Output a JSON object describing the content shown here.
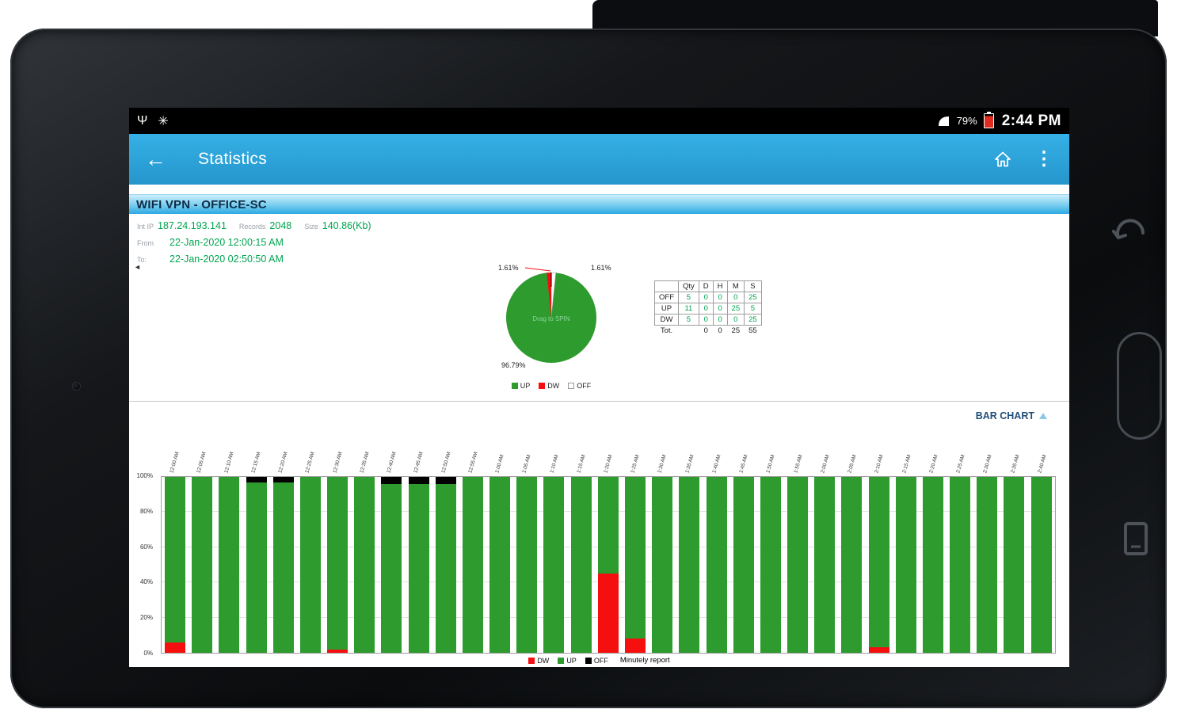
{
  "status_bar": {
    "battery_percent": "79%",
    "time": "2:44 PM"
  },
  "app_bar": {
    "title": "Statistics"
  },
  "connection": {
    "title": "WIFI VPN - OFFICE-SC",
    "int_ip_label": "Int IP",
    "int_ip": "187.24.193.141",
    "records_label": "Records",
    "records": "2048",
    "size_label": "Size",
    "size": "140.86(Kb)",
    "from_label": "From",
    "from_value": "22-Jan-2020 12:00:15 AM",
    "to_label": "To:",
    "to_value": "22-Jan-2020 02:50:50 AM"
  },
  "stats_table": {
    "headers": [
      "",
      "Qty",
      "D",
      "H",
      "M",
      "S"
    ],
    "rows": [
      {
        "label": "OFF",
        "values": [
          "5",
          "0",
          "0",
          "0",
          "25"
        ]
      },
      {
        "label": "UP",
        "values": [
          "11",
          "0",
          "0",
          "25",
          "5"
        ]
      },
      {
        "label": "DW",
        "values": [
          "5",
          "0",
          "0",
          "0",
          "25"
        ]
      }
    ],
    "total": {
      "label": "Tot.",
      "qty": "",
      "d": "0",
      "h": "0",
      "m": "25",
      "s": "55"
    }
  },
  "bar_section": {
    "title": "BAR CHART"
  },
  "chart_data": [
    {
      "type": "pie",
      "title": "Connection state share",
      "labels": [
        "UP",
        "DW",
        "OFF"
      ],
      "values": [
        96.79,
        1.61,
        1.61
      ],
      "colors": [
        "#2e9b2e",
        "#f50f0f",
        "#ffffff"
      ],
      "slice_labels": {
        "up": "96.79%",
        "dw": "1.61%",
        "off": "1.61%"
      },
      "center_label": "Drag to SPIN",
      "legend_position": "bottom"
    },
    {
      "type": "bar",
      "stacked": true,
      "title": "Minutely report",
      "note": "Minutely report",
      "xlabel": "",
      "ylabel": "",
      "ylim": [
        0,
        100
      ],
      "yticks": [
        "0%",
        "20%",
        "40%",
        "60%",
        "80%",
        "100%"
      ],
      "legend": [
        "DW",
        "UP",
        "OFF"
      ],
      "categories": [
        "12:00 AM",
        "12:05 AM",
        "12:10 AM",
        "12:15 AM",
        "12:20 AM",
        "12:25 AM",
        "12:30 AM",
        "12:35 AM",
        "12:40 AM",
        "12:45 AM",
        "12:50 AM",
        "12:55 AM",
        "1:00 AM",
        "1:05 AM",
        "1:10 AM",
        "1:15 AM",
        "1:20 AM",
        "1:25 AM",
        "1:30 AM",
        "1:35 AM",
        "1:40 AM",
        "1:45 AM",
        "1:50 AM",
        "1:55 AM",
        "2:00 AM",
        "2:05 AM",
        "2:10 AM",
        "2:15 AM",
        "2:20 AM",
        "2:25 AM",
        "2:30 AM",
        "2:35 AM",
        "2:40 AM"
      ],
      "series": [
        {
          "name": "DW",
          "color": "#f50f0f",
          "values": [
            6,
            0,
            0,
            0,
            0,
            0,
            2,
            0,
            0,
            0,
            0,
            0,
            0,
            0,
            0,
            0,
            45,
            8,
            0,
            0,
            0,
            0,
            0,
            0,
            0,
            0,
            3,
            0,
            0,
            0,
            0,
            0,
            0
          ]
        },
        {
          "name": "UP",
          "color": "#2e9b2e",
          "values": [
            94,
            100,
            100,
            97,
            97,
            100,
            98,
            100,
            96,
            96,
            96,
            100,
            100,
            100,
            100,
            100,
            55,
            92,
            100,
            100,
            100,
            100,
            100,
            100,
            100,
            100,
            97,
            100,
            100,
            100,
            100,
            100,
            100
          ]
        },
        {
          "name": "OFF",
          "color": "#000000",
          "values": [
            0,
            0,
            0,
            3,
            3,
            0,
            0,
            0,
            4,
            4,
            4,
            0,
            0,
            0,
            0,
            0,
            0,
            0,
            0,
            0,
            0,
            0,
            0,
            0,
            0,
            0,
            0,
            0,
            0,
            0,
            0,
            0,
            0
          ]
        }
      ]
    }
  ]
}
